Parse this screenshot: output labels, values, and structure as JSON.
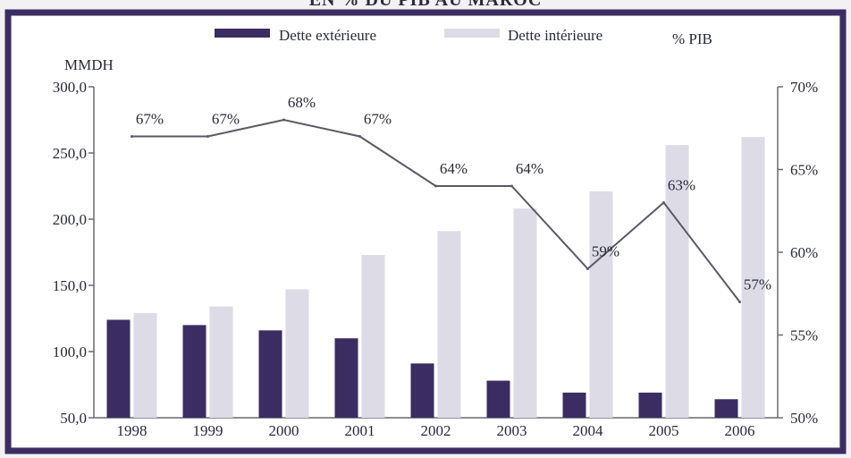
{
  "header": {
    "title_fragment": "EN % DU PIB AU MAROC"
  },
  "chart_data": {
    "type": "bar",
    "categories": [
      "1998",
      "1999",
      "2000",
      "2001",
      "2002",
      "2003",
      "2004",
      "2005",
      "2006"
    ],
    "series": [
      {
        "name": "Dette extérieure",
        "axis": "left",
        "color": "#3b2d62",
        "values": [
          124,
          120,
          116,
          110,
          91,
          78,
          69,
          69,
          64
        ]
      },
      {
        "name": "Dette intérieure",
        "axis": "left",
        "color": "#dcdbe6",
        "values": [
          129,
          134,
          147,
          173,
          191,
          208,
          221,
          256,
          262
        ]
      },
      {
        "name": "% PIB",
        "type": "line",
        "axis": "right",
        "color": "#5a5a66",
        "values": [
          67,
          67,
          68,
          67,
          64,
          64,
          59,
          63,
          57
        ],
        "labels": [
          "67%",
          "67%",
          "68%",
          "67%",
          "64%",
          "64%",
          "59%",
          "63%",
          "57%"
        ]
      }
    ],
    "ylabel": "MMDH",
    "ylim": [
      50,
      300
    ],
    "y_ticks": [
      "300,0",
      "250,0",
      "200,0",
      "150,0",
      "100,0",
      "50,0"
    ],
    "y2lim": [
      50,
      70
    ],
    "y2_ticks": [
      "70%",
      "65%",
      "60%",
      "55%",
      "50%"
    ],
    "legend_position": "top",
    "grid": false
  }
}
